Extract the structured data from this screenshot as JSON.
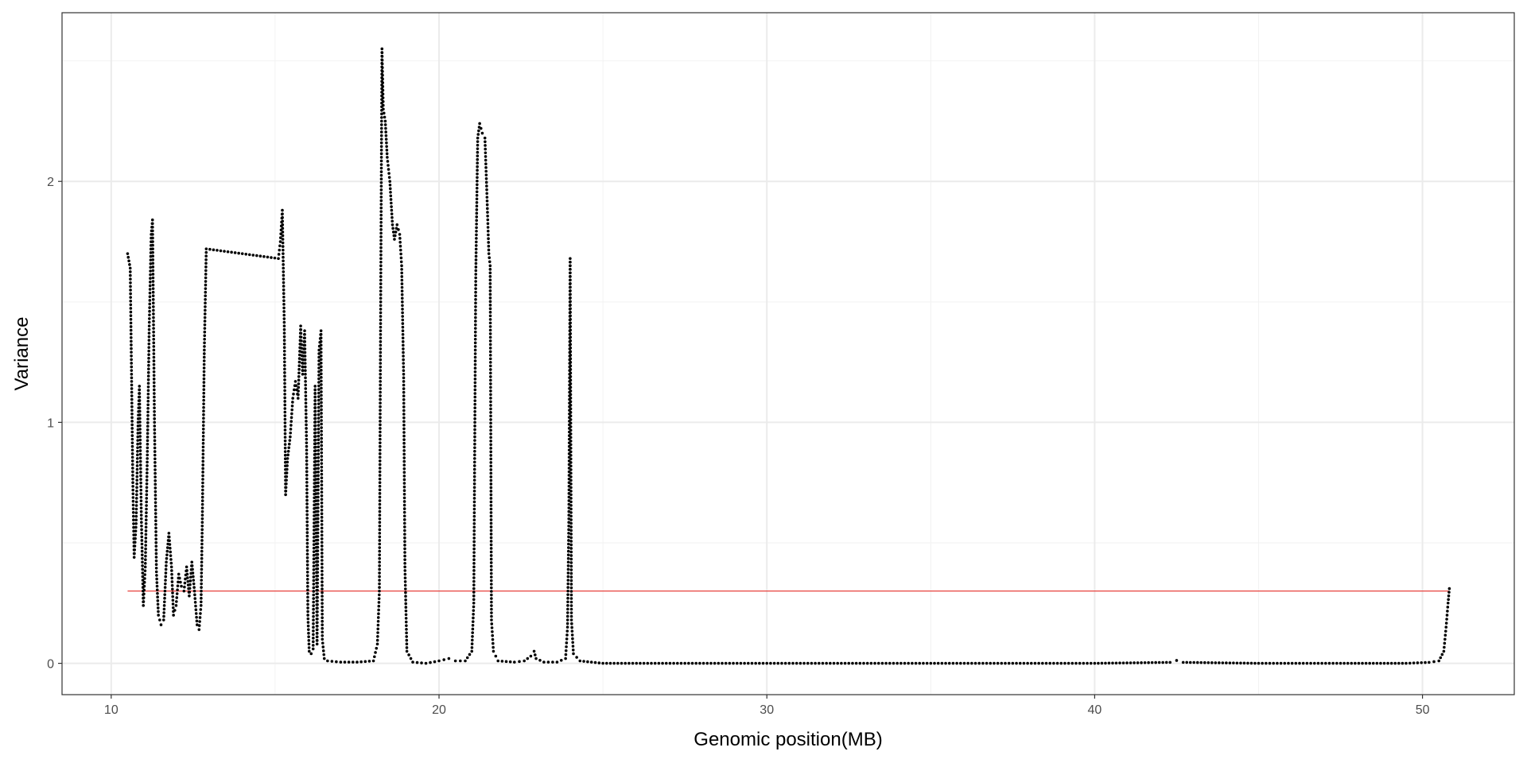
{
  "chart_data": {
    "type": "scatter",
    "title": "",
    "xlabel": "Genomic position(MB)",
    "ylabel": "Variance",
    "xlim": [
      8.5,
      52.8
    ],
    "ylim": [
      -0.13,
      2.7
    ],
    "x_ticks": [
      10,
      20,
      30,
      40,
      50
    ],
    "y_ticks": [
      0,
      1,
      2
    ],
    "x_minor_ticks": [
      15,
      25,
      35,
      45
    ],
    "y_minor_ticks": [
      0.5,
      1.5,
      2.5
    ],
    "grid": true,
    "legend": "none",
    "colors": {
      "points": "#000000",
      "threshold": "#e8413c",
      "grid": "#ebebeb",
      "panel_border": "#333333"
    },
    "threshold": {
      "y": 0.3,
      "x_start": 10.5,
      "x_end": 50.8
    },
    "series": [
      {
        "points": [
          [
            10.5,
            1.7
          ],
          [
            10.58,
            1.64
          ],
          [
            10.62,
            1.2
          ],
          [
            10.66,
            0.75
          ],
          [
            10.7,
            0.44
          ],
          [
            10.76,
            0.58
          ],
          [
            10.82,
            1.0
          ],
          [
            10.86,
            1.15
          ],
          [
            10.92,
            0.6
          ],
          [
            10.98,
            0.24
          ],
          [
            11.04,
            0.4
          ],
          [
            11.1,
            0.85
          ],
          [
            11.16,
            1.4
          ],
          [
            11.22,
            1.78
          ],
          [
            11.26,
            1.84
          ],
          [
            11.32,
            1.0
          ],
          [
            11.38,
            0.38
          ],
          [
            11.44,
            0.2
          ],
          [
            11.52,
            0.16
          ],
          [
            11.6,
            0.18
          ],
          [
            11.68,
            0.42
          ],
          [
            11.76,
            0.54
          ],
          [
            11.84,
            0.4
          ],
          [
            11.9,
            0.2
          ],
          [
            11.98,
            0.24
          ],
          [
            12.06,
            0.37
          ],
          [
            12.14,
            0.32
          ],
          [
            12.22,
            0.3
          ],
          [
            12.3,
            0.4
          ],
          [
            12.38,
            0.28
          ],
          [
            12.46,
            0.42
          ],
          [
            12.54,
            0.3
          ],
          [
            12.62,
            0.16
          ],
          [
            12.68,
            0.14
          ],
          [
            12.74,
            0.24
          ],
          [
            12.78,
            0.6
          ],
          [
            12.84,
            1.3
          ],
          [
            12.9,
            1.72
          ],
          [
            15.1,
            1.68
          ],
          [
            15.16,
            1.75
          ],
          [
            15.22,
            1.88
          ],
          [
            15.28,
            1.4
          ],
          [
            15.32,
            0.7
          ],
          [
            15.38,
            0.85
          ],
          [
            15.46,
            0.94
          ],
          [
            15.54,
            1.1
          ],
          [
            15.62,
            1.17
          ],
          [
            15.7,
            1.1
          ],
          [
            15.78,
            1.4
          ],
          [
            15.84,
            1.2
          ],
          [
            15.9,
            1.38
          ],
          [
            15.96,
            0.9
          ],
          [
            16.0,
            0.2
          ],
          [
            16.04,
            0.05
          ],
          [
            16.1,
            0.04
          ],
          [
            16.16,
            0.06
          ],
          [
            16.22,
            1.15
          ],
          [
            16.28,
            0.08
          ],
          [
            16.34,
            1.3
          ],
          [
            16.4,
            1.38
          ],
          [
            16.44,
            0.1
          ],
          [
            16.5,
            0.02
          ],
          [
            16.6,
            0.01
          ],
          [
            17.0,
            0.005
          ],
          [
            17.5,
            0.005
          ],
          [
            18.0,
            0.01
          ],
          [
            18.12,
            0.08
          ],
          [
            18.18,
            0.3
          ],
          [
            18.22,
            1.5
          ],
          [
            18.26,
            2.55
          ],
          [
            18.3,
            2.3
          ],
          [
            18.36,
            2.25
          ],
          [
            18.42,
            2.1
          ],
          [
            18.5,
            2.0
          ],
          [
            18.58,
            1.82
          ],
          [
            18.64,
            1.76
          ],
          [
            18.72,
            1.82
          ],
          [
            18.8,
            1.78
          ],
          [
            18.86,
            1.65
          ],
          [
            18.92,
            1.2
          ],
          [
            18.96,
            0.4
          ],
          [
            19.02,
            0.05
          ],
          [
            19.2,
            0.005
          ],
          [
            19.6,
            0.0
          ],
          [
            20.0,
            0.01
          ],
          [
            20.3,
            0.02
          ],
          [
            20.5,
            0.01
          ],
          [
            20.8,
            0.01
          ],
          [
            21.0,
            0.05
          ],
          [
            21.06,
            0.25
          ],
          [
            21.12,
            1.6
          ],
          [
            21.18,
            2.18
          ],
          [
            21.24,
            2.24
          ],
          [
            21.32,
            2.2
          ],
          [
            21.4,
            2.18
          ],
          [
            21.46,
            1.95
          ],
          [
            21.52,
            1.7
          ],
          [
            21.56,
            1.65
          ],
          [
            21.6,
            0.18
          ],
          [
            21.66,
            0.05
          ],
          [
            21.8,
            0.01
          ],
          [
            22.3,
            0.005
          ],
          [
            22.6,
            0.01
          ],
          [
            22.8,
            0.03
          ],
          [
            22.9,
            0.05
          ],
          [
            22.96,
            0.02
          ],
          [
            23.2,
            0.005
          ],
          [
            23.6,
            0.005
          ],
          [
            23.86,
            0.02
          ],
          [
            23.92,
            0.15
          ],
          [
            23.96,
            0.6
          ],
          [
            24.0,
            1.68
          ],
          [
            24.04,
            0.18
          ],
          [
            24.1,
            0.04
          ],
          [
            24.3,
            0.01
          ],
          [
            25.0,
            0.0
          ],
          [
            27.5,
            0.0
          ],
          [
            30.0,
            0.0
          ],
          [
            32.5,
            0.0
          ],
          [
            35.0,
            0.0
          ],
          [
            37.5,
            0.0
          ],
          [
            40.0,
            0.0
          ],
          [
            42.3,
            0.004
          ],
          [
            42.5,
            0.012
          ],
          [
            42.7,
            0.004
          ],
          [
            45.0,
            0.0
          ],
          [
            47.5,
            0.0
          ],
          [
            49.5,
            0.0
          ],
          [
            50.2,
            0.004
          ],
          [
            50.5,
            0.01
          ],
          [
            50.65,
            0.05
          ],
          [
            50.72,
            0.15
          ],
          [
            50.78,
            0.25
          ],
          [
            50.82,
            0.31
          ]
        ]
      }
    ]
  }
}
